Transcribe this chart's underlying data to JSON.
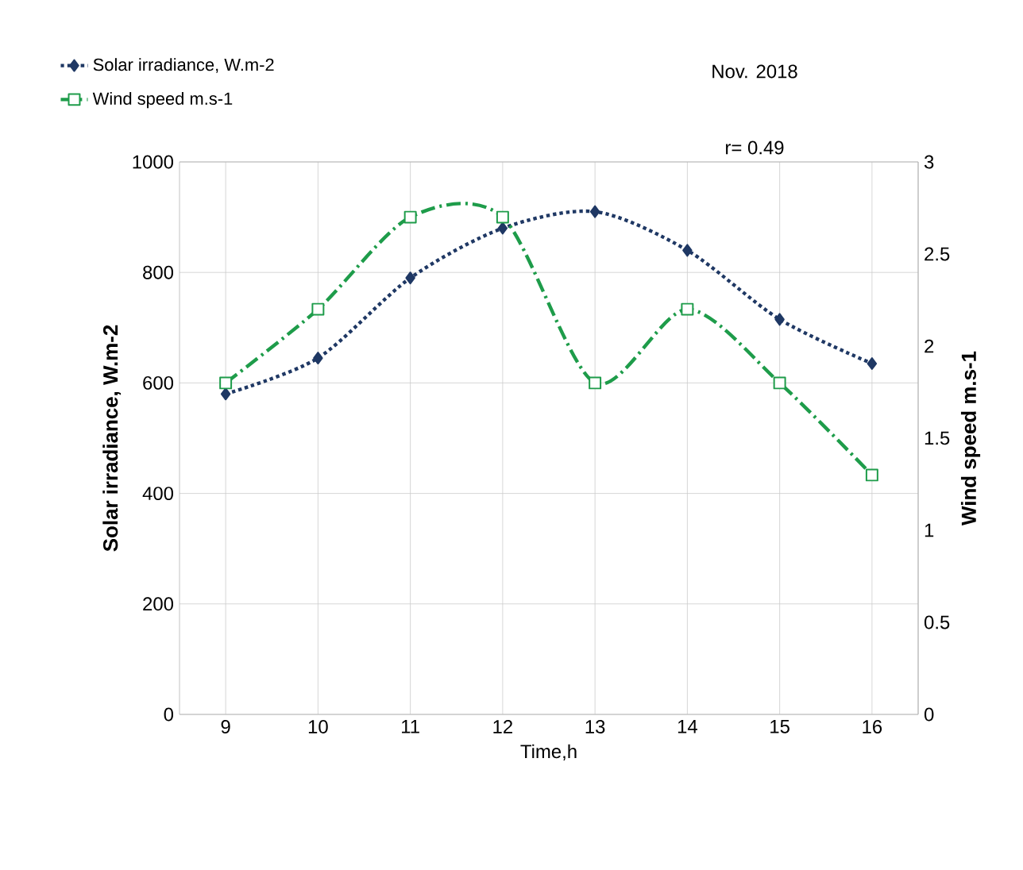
{
  "chart_data": {
    "type": "line",
    "categories": [
      "9",
      "10",
      "11",
      "12",
      "13",
      "14",
      "15",
      "16"
    ],
    "xlabel": "Time,h",
    "ylabel": "Solar irradiance,  W.m-2",
    "y2label": "Wind speed m.s-1",
    "ylim": [
      0,
      1000
    ],
    "yticks": [
      0,
      200,
      400,
      600,
      800,
      1000
    ],
    "y2lim": [
      0,
      3
    ],
    "y2ticks": [
      0,
      0.5,
      1,
      1.5,
      2,
      2.5,
      3
    ],
    "grid": true,
    "legend": "top left",
    "annotations": [
      "Nov. 2018",
      "r= 0.49"
    ],
    "series": [
      {
        "name": "Solar irradiance, W.m-2",
        "color": "#1f3864",
        "marker": "diamond",
        "line_style": "dotted",
        "values": [
          580,
          645,
          790,
          880,
          910,
          840,
          715,
          635
        ]
      },
      {
        "name": "Wind speed m.s-1",
        "color": "#1e9c4a",
        "marker": "square",
        "line_style": "dashed",
        "axis": "y2",
        "values": [
          1.8,
          2.2,
          2.7,
          2.7,
          1.8,
          2.2,
          1.8,
          1.3
        ]
      }
    ]
  }
}
